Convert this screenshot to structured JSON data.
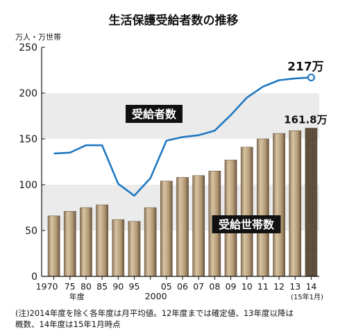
{
  "chart_data": {
    "type": "bar",
    "title": "生活保護受給者数の推移",
    "ylabel": "万人・万世帯",
    "ylim": [
      0,
      250
    ],
    "yticks": [
      0,
      50,
      100,
      150,
      200,
      250
    ],
    "grid": "alternating shaded bands",
    "categories": [
      "1970",
      "75",
      "80",
      "85",
      "90",
      "95",
      "2000",
      "05",
      "06",
      "07",
      "08",
      "09",
      "10",
      "11",
      "12",
      "13",
      "14"
    ],
    "x_tick_labels": [
      "1970",
      "75",
      "80",
      "85",
      "90",
      "95",
      "2000",
      "05",
      "06",
      "07",
      "08",
      "09",
      "10",
      "11",
      "12",
      "13",
      "14"
    ],
    "x_unit_label": "年度",
    "last_tick_sub": "(15年1月)",
    "series": [
      {
        "name": "受給世帯数",
        "mark": "bar",
        "values": [
          66,
          71,
          75,
          78,
          62,
          60,
          75,
          104,
          108,
          110,
          115,
          127,
          141,
          150,
          156,
          159,
          161.8
        ]
      },
      {
        "name": "受給者数",
        "mark": "line",
        "values": [
          134,
          135,
          143,
          143,
          101,
          88,
          107,
          148,
          152,
          154,
          159,
          176,
          195,
          207,
          214,
          216,
          217
        ]
      }
    ],
    "value_labels": {
      "line_last": "217万",
      "bar_last": "161.8万"
    },
    "colors": {
      "line": "#1f78c1",
      "bar": "#b49a76",
      "band": "#ebebeb",
      "label_box": "#111111"
    }
  },
  "footnote": "(注)2014年度を除く各年度は月平均値。12年度までは確定値、13年度以降は\n概数、14年度は15年1月時点"
}
